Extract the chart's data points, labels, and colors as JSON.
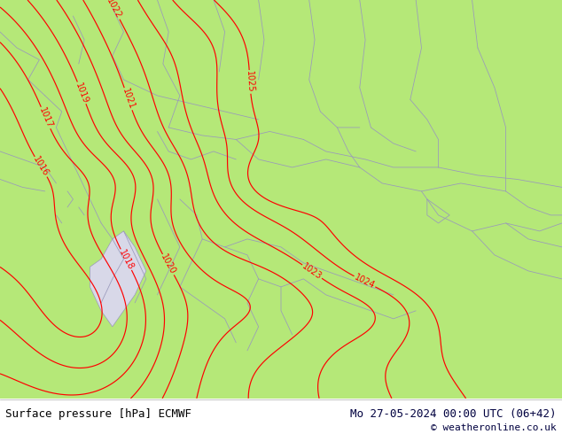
{
  "title_left": "Surface pressure [hPa] ECMWF",
  "title_right": "Mo 27-05-2024 00:00 UTC (06+42)",
  "copyright": "© weatheronline.co.uk",
  "bg_color": "#b5e878",
  "contour_color": "#ff0000",
  "border_color": "#9999bb",
  "footer_bg": "#ffffff",
  "text_color_left": "#000000",
  "text_color_right": "#00003f",
  "figsize": [
    6.34,
    4.9
  ],
  "dpi": 100
}
